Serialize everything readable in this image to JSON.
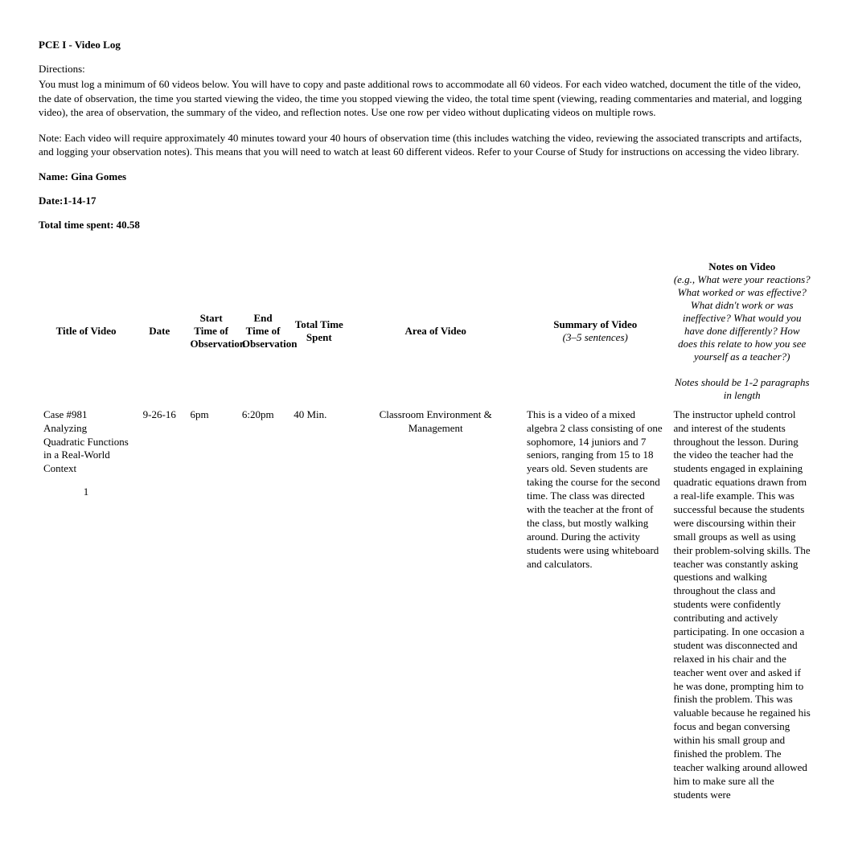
{
  "header": {
    "doc_title": "PCE I - Video Log",
    "directions_label": "Directions:",
    "directions_body": "You must log a minimum of 60 videos below. You will have to copy and paste additional rows to accommodate all 60 videos. For each video watched, document the title of the video, the date of observation, the time you started viewing the video, the time you stopped viewing the video, the total time spent (viewing, reading commentaries and material, and logging video), the area of observation, the summary of the video, and reflection notes. Use one row per video without duplicating videos on multiple rows.",
    "note_body": "Note: Each video will require approximately 40 minutes toward your 40 hours of observation time (this includes watching the video, reviewing the associated transcripts and artifacts, and logging your observation notes). This means that you will need to watch at least 60 different videos. Refer to your Course of Study for instructions on accessing the video library.",
    "name_label": "Name: Gina Gomes",
    "date_label": "Date:1-14-17",
    "total_time_label": "Total time spent: 40.58"
  },
  "columns": {
    "title": "Title of Video",
    "date": "Date",
    "start": "Start Time of Observation",
    "end": "End Time of Observation",
    "total": "Total Time Spent",
    "area": "Area of Video",
    "summary": "Summary of Video",
    "summary_sub": "(3–5 sentences)",
    "notes": "Notes on Video",
    "notes_sub1": "(e.g., What were your reactions? What worked or was effective? What didn't work or was ineffective? What would you have done differently? How does this relate to how you see yourself as a teacher?)",
    "notes_sub2": "Notes should be 1-2 paragraphs in length"
  },
  "row": {
    "number": "1",
    "title": "Case #981 Analyzing Quadratic Functions in a Real-World Context",
    "date": "9-26-16",
    "start": "6pm",
    "end": "6:20pm",
    "total": "40 Min.",
    "area": "Classroom Environment & Management",
    "summary": " This is a video of a mixed algebra 2 class consisting of one sophomore, 14 juniors and 7 seniors, ranging from 15 to 18 years old. Seven students are taking the course for the second time. The class was directed with the teacher at the front of the class, but mostly walking around. During the activity students were using whiteboard and calculators.",
    "notes": "The instructor upheld control and interest of the students throughout the lesson. During the video the teacher had the students engaged in explaining quadratic equations drawn from a real-life example. This was successful because the students were discoursing within their small groups as well as using their problem-solving skills. The teacher was constantly asking questions and walking throughout the class and students were confidently contributing and actively participating. In one occasion a student was disconnected and relaxed in his chair and the teacher went over and asked if he was done, prompting him to finish the problem. This was valuable because he regained his focus and began conversing within his small group and finished the problem. The teacher walking around allowed him to make sure all the students were"
  }
}
